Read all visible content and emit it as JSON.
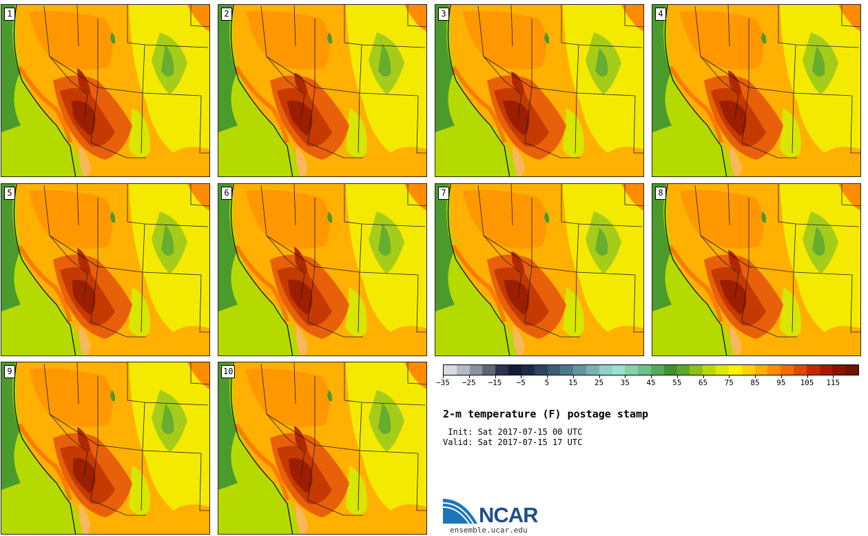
{
  "members": [
    "1",
    "2",
    "3",
    "4",
    "5",
    "6",
    "7",
    "8",
    "9",
    "10"
  ],
  "colorbar": {
    "tick_labels": [
      "−35",
      "−25",
      "−15",
      "−5",
      "5",
      "15",
      "25",
      "35",
      "45",
      "55",
      "65",
      "75",
      "85",
      "95",
      "105",
      "115"
    ],
    "colors": [
      "#d9dde3",
      "#b5bac3",
      "#8c93a0",
      "#5e6577",
      "#2b3350",
      "#141c38",
      "#1c2a48",
      "#2c4460",
      "#3c5d74",
      "#4d7a8a",
      "#62959f",
      "#79b2b4",
      "#90d0c8",
      "#9be0cc",
      "#86d2a8",
      "#6cc088",
      "#52ab5d",
      "#3f9232",
      "#5aa828",
      "#8ec21a",
      "#b9dc00",
      "#e0ea00",
      "#fff200",
      "#ffd400",
      "#ffb000",
      "#ff8c00",
      "#f26c00",
      "#e04a00",
      "#c42a00",
      "#a81800",
      "#8c1200",
      "#6e1400"
    ]
  },
  "title": "2-m temperature (F) postage stamp",
  "init": " Init: Sat 2017-07-15 00 UTC",
  "valid": "Valid: Sat 2017-07-15 17 UTC",
  "logo": {
    "name": "NCAR",
    "url": "ensemble.ucar.edu"
  }
}
